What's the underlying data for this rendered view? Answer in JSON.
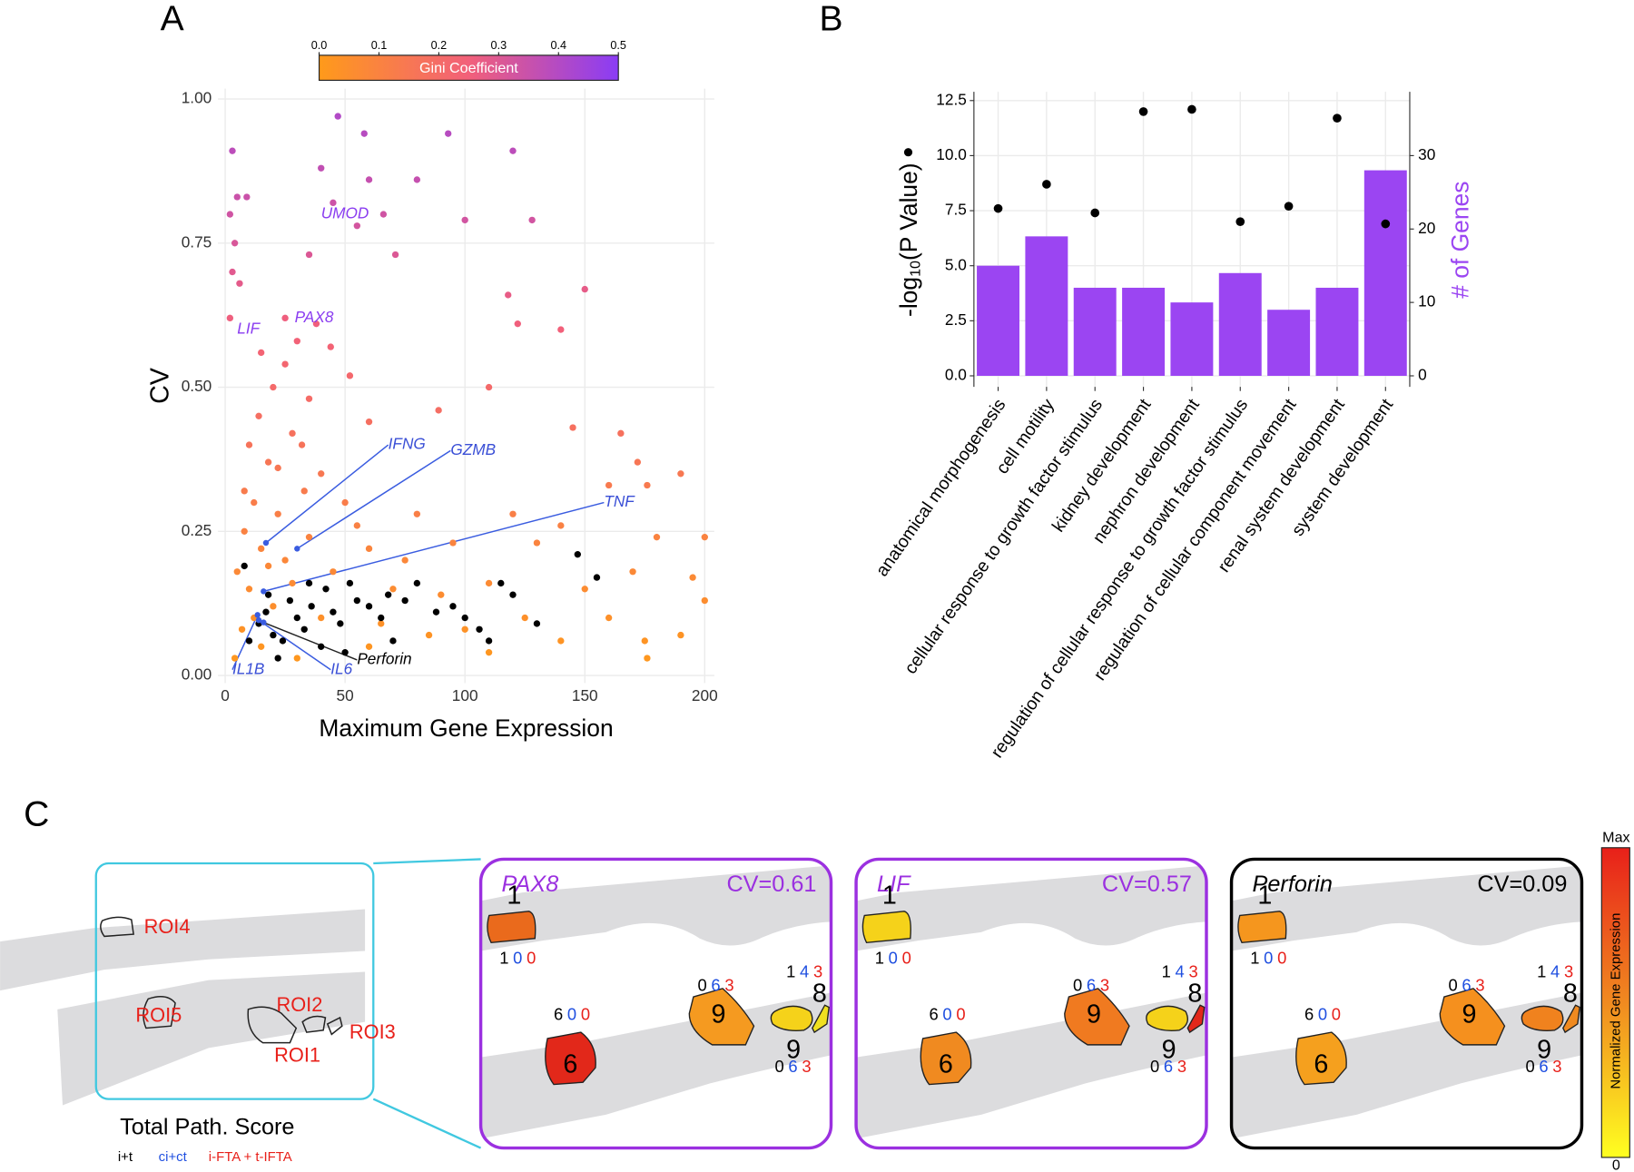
{
  "panel_labels": [
    "A",
    "B",
    "C"
  ],
  "chart_data": [
    {
      "type": "scatter",
      "x_label": "Maximum Gene Expression",
      "y_label": "CV",
      "xlim": [
        -3,
        204
      ],
      "xticks": [
        0,
        50,
        100,
        150,
        200
      ],
      "ylim": [
        -0.013,
        1.018
      ],
      "yticks": [
        {
          "value": 0,
          "label": "0.00"
        },
        0.25,
        {
          "value": 0.5,
          "label": "0.50"
        },
        0.75,
        {
          "value": 1,
          "label": "1.00"
        }
      ],
      "grid": true,
      "colorbar": {
        "label": "Gini Coefficient",
        "lim": [
          0,
          0.5
        ],
        "ticks": [
          {
            "value": 0,
            "label": "0.0"
          },
          0.1,
          0.2,
          0.3,
          0.4,
          0.5
        ],
        "colors": [
          "#ff9a1a",
          "#f2607a",
          "#8a3cf5"
        ]
      },
      "series": [
        {
          "x": [
            3,
            5,
            9,
            2,
            4,
            3,
            6,
            2,
            47,
            58,
            93,
            120,
            40,
            60,
            80,
            45,
            66,
            100,
            128,
            55,
            35,
            71,
            150,
            118,
            122,
            140,
            38,
            30,
            44,
            25,
            20,
            52,
            110,
            89,
            145,
            165,
            60,
            14,
            28,
            10,
            18,
            40,
            33,
            172,
            190,
            160,
            176,
            12,
            22,
            50,
            80,
            120,
            140,
            200,
            8,
            15,
            25,
            35,
            60,
            95,
            130,
            180,
            195,
            170,
            150,
            110,
            90,
            70,
            5,
            10,
            20,
            40,
            65,
            100,
            125,
            160,
            190,
            175,
            140,
            110,
            176,
            7,
            15,
            30,
            4,
            60,
            85,
            200,
            45,
            75,
            55,
            18,
            28,
            12,
            8,
            22,
            32,
            15,
            25,
            35
          ],
          "values": [
            0.91,
            0.83,
            0.83,
            0.8,
            0.75,
            0.7,
            0.68,
            0.62,
            0.97,
            0.94,
            0.94,
            0.91,
            0.88,
            0.86,
            0.86,
            0.82,
            0.8,
            0.79,
            0.79,
            0.78,
            0.73,
            0.73,
            0.67,
            0.66,
            0.61,
            0.6,
            0.61,
            0.58,
            0.57,
            0.54,
            0.5,
            0.52,
            0.5,
            0.46,
            0.43,
            0.42,
            0.44,
            0.45,
            0.42,
            0.4,
            0.37,
            0.35,
            0.32,
            0.37,
            0.35,
            0.33,
            0.33,
            0.3,
            0.28,
            0.3,
            0.28,
            0.28,
            0.26,
            0.24,
            0.25,
            0.22,
            0.2,
            0.24,
            0.22,
            0.23,
            0.23,
            0.24,
            0.17,
            0.18,
            0.15,
            0.16,
            0.14,
            0.15,
            0.18,
            0.15,
            0.12,
            0.1,
            0.09,
            0.08,
            0.1,
            0.1,
            0.07,
            0.06,
            0.06,
            0.04,
            0.03,
            0.08,
            0.05,
            0.03,
            0.03,
            0.05,
            0.07,
            0.13,
            0.18,
            0.2,
            0.26,
            0.19,
            0.16,
            0.1,
            0.32,
            0.36,
            0.4,
            0.56,
            0.62,
            0.48
          ]
        },
        {
          "color": "#000000",
          "x": [
            8,
            14,
            17,
            20,
            24,
            27,
            30,
            33,
            36,
            40,
            42,
            45,
            48,
            50,
            52,
            55,
            60,
            65,
            68,
            70,
            75,
            80,
            88,
            95,
            100,
            106,
            110,
            115,
            120,
            130,
            147,
            155,
            10,
            22,
            18,
            35
          ],
          "values": [
            0.19,
            0.09,
            0.11,
            0.07,
            0.06,
            0.13,
            0.1,
            0.08,
            0.12,
            0.05,
            0.15,
            0.11,
            0.09,
            0.04,
            0.16,
            0.13,
            0.12,
            0.1,
            0.14,
            0.06,
            0.13,
            0.16,
            0.11,
            0.12,
            0.1,
            0.08,
            0.06,
            0.16,
            0.14,
            0.09,
            0.21,
            0.17,
            0.06,
            0.03,
            0.14,
            0.16
          ]
        }
      ],
      "annotations": [
        {
          "text": "UMOD",
          "x": 40,
          "y": 0.8,
          "color": "#8a3cf0"
        },
        {
          "text": "PAX8",
          "x": 29,
          "y": 0.62,
          "color": "#8a3cf0"
        },
        {
          "text": "LIF",
          "x": 5,
          "y": 0.6,
          "color": "#8a3cf0"
        },
        {
          "text": "IFNG",
          "x": 68,
          "y": 0.4,
          "color": "#3a4fd6",
          "point": {
            "x": 17,
            "y": 0.23
          }
        },
        {
          "text": "GZMB",
          "x": 94,
          "y": 0.39,
          "color": "#3a4fd6",
          "point": {
            "x": 30,
            "y": 0.22
          }
        },
        {
          "text": "TNF",
          "x": 158,
          "y": 0.3,
          "color": "#3a4fd6",
          "point": {
            "x": 16,
            "y": 0.146
          }
        },
        {
          "text": "IL1B",
          "x": 3,
          "y": 0.01,
          "color": "#3a4fd6",
          "point": {
            "x": 13.5,
            "y": 0.105
          }
        },
        {
          "text": "IL6",
          "x": 44,
          "y": 0.01,
          "color": "#3a4fd6",
          "point": {
            "x": 14,
            "y": 0.096
          }
        },
        {
          "text": "Perforin",
          "x": 55,
          "y": 0.027,
          "color": "#000000",
          "point": {
            "x": 16,
            "y": 0.092
          }
        }
      ]
    },
    {
      "type": "bar",
      "categories": [
        "anatomical morphogenesis",
        "cell motility",
        "cellular response to growth factor stimulus",
        "kidney development",
        "nephron development",
        "regulation of cellular response to growth factor stimulus",
        "regulation of cellular component movement",
        "renal system development",
        "system development"
      ],
      "ylim": [
        -0.5,
        12.9
      ],
      "yticks": [
        {
          "value": 0,
          "label": "0.0"
        },
        2.5,
        {
          "value": 5,
          "label": "5.0"
        },
        7.5,
        {
          "value": 10,
          "label": "10.0"
        },
        12.5
      ],
      "y2lim": [
        -1.5,
        38.7
      ],
      "y2ticks": [
        0,
        10,
        20,
        30
      ],
      "y_label": {
        "base": "-log",
        "sub": "10",
        "rest": "(P Value)"
      },
      "y2_label": "# of Genes",
      "grid": true,
      "series": [
        {
          "type": "bar",
          "color": "#9b45f2",
          "axis": "y2",
          "values": [
            15,
            19,
            12,
            12,
            10,
            14,
            9,
            12,
            28
          ]
        },
        {
          "type": "dot",
          "color": "#000000",
          "values": [
            7.6,
            8.7,
            7.4,
            12.0,
            12.1,
            7.0,
            7.7,
            11.7,
            6.9
          ]
        }
      ]
    }
  ],
  "panel_c": {
    "overview": {
      "rois": [
        "ROI4",
        "ROI5",
        "ROI2",
        "ROI1",
        "ROI3"
      ],
      "roi_color": "#e8201a",
      "box_color": "#40c8e0",
      "legend_title": "Total Path. Score",
      "legend_items": [
        "i+t",
        "ci+ct",
        "i-FTA + t-IFTA"
      ]
    },
    "score_colors": [
      "#000000",
      "#1f4fe0",
      "#e8201a"
    ],
    "regions": [
      {
        "label": "1",
        "scores": [
          1,
          0,
          0
        ]
      },
      {
        "label": "6",
        "scores": [
          6,
          0,
          0
        ]
      },
      {
        "label": "9",
        "scores": [
          0,
          6,
          3
        ]
      },
      {
        "label": "9",
        "scores": [
          0,
          6,
          3
        ]
      },
      {
        "label": "8",
        "scores": [
          1,
          4,
          3
        ]
      }
    ],
    "panels": [
      {
        "gene": "PAX8",
        "cv_label": "CV=0.61",
        "color": "#9b30e0",
        "fills": [
          "#ea6a1c",
          "#e2281a",
          "#f59a20",
          "#f5d21a",
          "#f0e020"
        ]
      },
      {
        "gene": "LIF",
        "cv_label": "CV=0.57",
        "color": "#9b30e0",
        "fills": [
          "#f5d21a",
          "#f08a20",
          "#f07a20",
          "#f5d21a",
          "#e2281a"
        ]
      },
      {
        "gene": "Perforin",
        "cv_label": "CV=0.09",
        "color": "#000000",
        "fills": [
          "#f5961e",
          "#f5a01e",
          "#f5901e",
          "#f0821e",
          "#f08a20"
        ]
      }
    ],
    "colorbar": {
      "max": "Max",
      "min": "0",
      "label": "Normalized Gene Expression",
      "colors": [
        "#e8201a",
        "#f08a20",
        "#ffff20"
      ]
    }
  }
}
